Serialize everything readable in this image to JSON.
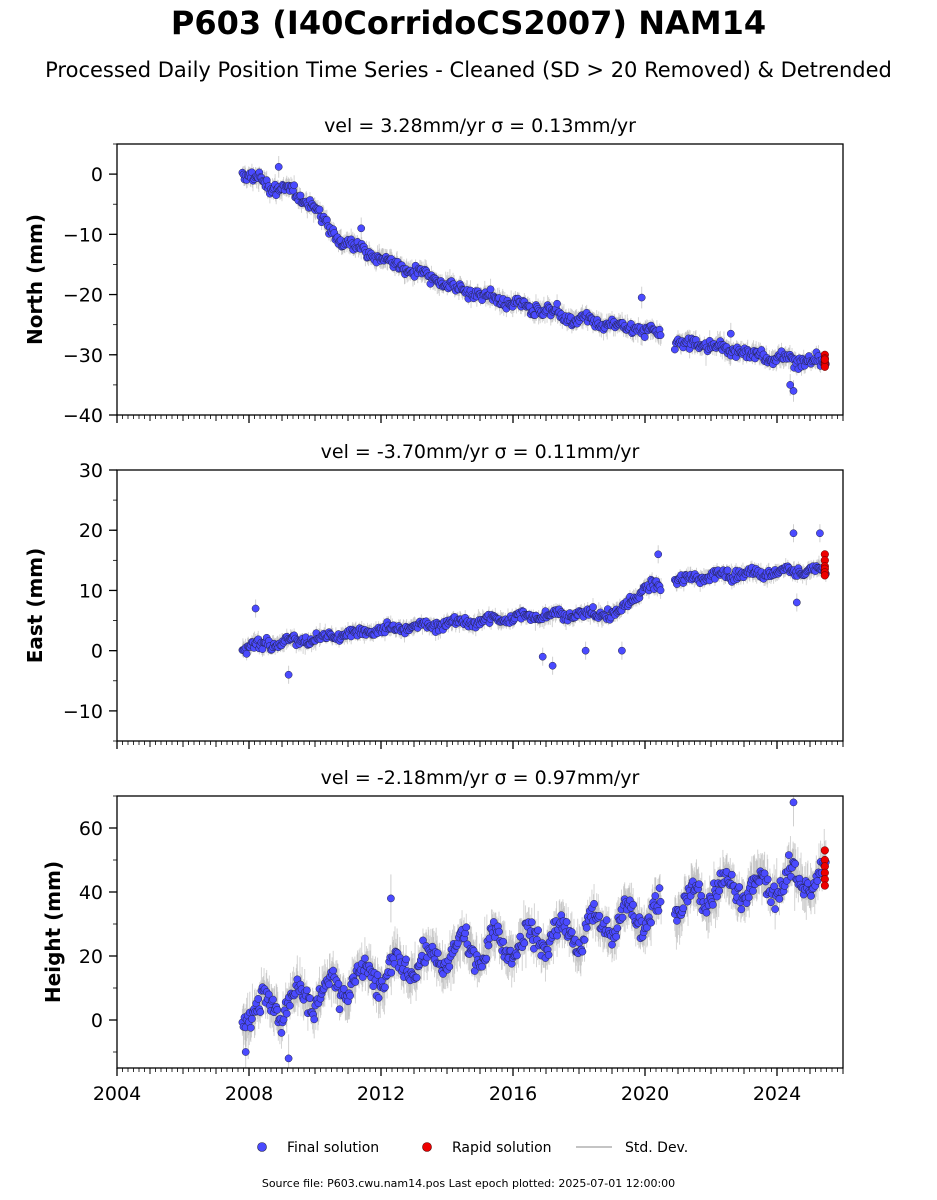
{
  "title": "P603 (I40CorridoCS2007) NAM14",
  "subtitle": "Processed Daily Position Time Series - Cleaned (SD > 20 Removed) & Detrended",
  "source_note": "Source file: P603.cwu.nam14.pos  Last epoch plotted: 2025-07-01 12:00:00",
  "colors": {
    "final": "#4a4aff",
    "rapid": "#ee0000",
    "stddev": "#b0b0b0",
    "edge": "#222244"
  },
  "legend": {
    "final": "Final solution",
    "rapid": "Rapid solution",
    "stddev": "Std. Dev."
  },
  "chart_data": [
    {
      "type": "scatter",
      "title": "vel = 3.28mm/yr   σ = 0.13mm/yr",
      "ylabel": "North (mm)",
      "xlim": [
        2004,
        2026
      ],
      "ylim": [
        -40,
        5
      ],
      "yticks": [
        0,
        -10,
        -20,
        -30,
        -40
      ],
      "xticks": [
        2004,
        2008,
        2012,
        2016,
        2020,
        2024
      ],
      "grid": false,
      "gaps": [
        [
          2020.5,
          2020.9
        ]
      ],
      "trend": [
        [
          2007.8,
          0
        ],
        [
          2008.5,
          -1.5
        ],
        [
          2009.5,
          -3.5
        ],
        [
          2010.0,
          -5.5
        ],
        [
          2010.3,
          -8
        ],
        [
          2010.8,
          -11
        ],
        [
          2012.0,
          -14
        ],
        [
          2014.0,
          -18.5
        ],
        [
          2016.0,
          -21.5
        ],
        [
          2018.0,
          -24
        ],
        [
          2020.5,
          -26.5
        ],
        [
          2020.9,
          -28
        ],
        [
          2022.0,
          -28.5
        ],
        [
          2024.0,
          -30.5
        ],
        [
          2025.5,
          -31.5
        ]
      ],
      "scatter_sd": 1.2,
      "outliers": [
        [
          2024.5,
          -36
        ],
        [
          2024.4,
          -35
        ],
        [
          2019.9,
          -20.5
        ],
        [
          2008.9,
          1.2
        ],
        [
          2011.4,
          -9
        ],
        [
          2022.6,
          -26.5
        ]
      ],
      "rapid": {
        "x": 2025.45,
        "values": [
          -30,
          -30.6,
          -31.2,
          -31.6,
          -32,
          -30.8
        ]
      }
    },
    {
      "type": "scatter",
      "title": "vel = -3.70mm/yr   σ = 0.11mm/yr",
      "ylabel": "East (mm)",
      "xlim": [
        2004,
        2026
      ],
      "ylim": [
        -15,
        30
      ],
      "yticks": [
        30,
        20,
        10,
        0,
        -10
      ],
      "xticks": [
        2004,
        2008,
        2012,
        2016,
        2020,
        2024
      ],
      "grid": false,
      "gaps": [
        [
          2020.5,
          2020.9
        ]
      ],
      "trend": [
        [
          2007.8,
          0.5
        ],
        [
          2010.0,
          2
        ],
        [
          2012.0,
          3.5
        ],
        [
          2014.0,
          4.5
        ],
        [
          2016.0,
          5.5
        ],
        [
          2018.0,
          6
        ],
        [
          2019.2,
          6.2
        ],
        [
          2019.6,
          8.5
        ],
        [
          2020.0,
          10.5
        ],
        [
          2020.5,
          10.5
        ],
        [
          2020.9,
          11.5
        ],
        [
          2022.0,
          12.5
        ],
        [
          2024.0,
          13
        ],
        [
          2025.5,
          13.5
        ]
      ],
      "scatter_sd": 1.0,
      "outliers": [
        [
          2008.2,
          7
        ],
        [
          2017.2,
          -2.5
        ],
        [
          2016.9,
          -1
        ],
        [
          2018.2,
          0
        ],
        [
          2019.3,
          0
        ],
        [
          2024.5,
          19.5
        ],
        [
          2025.3,
          19.5
        ],
        [
          2024.6,
          8
        ],
        [
          2020.4,
          16
        ],
        [
          2009.2,
          -4
        ]
      ],
      "rapid": {
        "x": 2025.45,
        "values": [
          16,
          15,
          14,
          13.6,
          13,
          12.5
        ]
      }
    },
    {
      "type": "scatter",
      "title": "vel = -2.18mm/yr   σ = 0.97mm/yr",
      "ylabel": "Height (mm)",
      "xlim": [
        2004,
        2026
      ],
      "ylim": [
        -15,
        70
      ],
      "yticks": [
        60,
        40,
        20,
        0
      ],
      "xticks": [
        2004,
        2008,
        2012,
        2016,
        2020,
        2024
      ],
      "grid": false,
      "gaps": [
        [
          2020.5,
          2020.9
        ]
      ],
      "trend": [
        [
          2007.8,
          2
        ],
        [
          2010.0,
          8
        ],
        [
          2012.0,
          15
        ],
        [
          2014.0,
          20
        ],
        [
          2016.0,
          24
        ],
        [
          2018.0,
          27
        ],
        [
          2020.5,
          35
        ],
        [
          2020.9,
          35
        ],
        [
          2022.0,
          40
        ],
        [
          2024.0,
          43
        ],
        [
          2025.5,
          45
        ]
      ],
      "scatter_sd": 5.0,
      "outliers": [
        [
          2024.5,
          68
        ],
        [
          2012.3,
          38
        ],
        [
          2007.9,
          -10
        ],
        [
          2009.2,
          -12
        ]
      ],
      "rapid": {
        "x": 2025.45,
        "values": [
          53,
          50,
          48,
          46,
          44,
          42
        ]
      }
    }
  ]
}
